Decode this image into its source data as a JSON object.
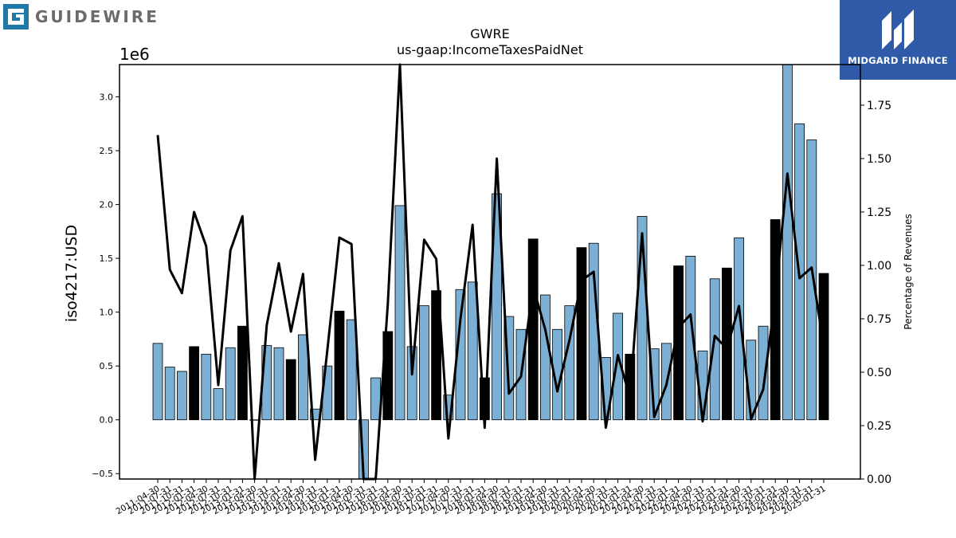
{
  "logos": {
    "left_text": "GUIDEWIRE",
    "right_text": "MIDGARD FINANCE",
    "left_icon": "guidewire-g-icon",
    "right_icon": "midgard-m-icon",
    "left_color": "#1f7aa8",
    "right_bg": "#2e5aa7"
  },
  "chart_data": {
    "type": "bar",
    "title": "GWRE",
    "subtitle": "us-gaap:IncomeTaxesPaidNet",
    "ylabel": "iso4217:USD",
    "y_multiplier_label": "1e6",
    "y2label": "Percentage of Revenues",
    "ylim": [
      -0.55,
      3.3
    ],
    "y2lim": [
      0.0,
      1.94
    ],
    "yticks": [
      -0.5,
      0.0,
      0.5,
      1.0,
      1.5,
      2.0,
      2.5,
      3.0
    ],
    "ytick_labels": [
      "−0.5",
      "0.0",
      "0.5",
      "1.0",
      "1.5",
      "2.0",
      "2.5",
      "3.0"
    ],
    "y2ticks": [
      0.0,
      0.25,
      0.5,
      0.75,
      1.0,
      1.25,
      1.5,
      1.75
    ],
    "y2tick_labels": [
      "0.00",
      "0.25",
      "0.50",
      "0.75",
      "1.00",
      "1.25",
      "1.50",
      "1.75"
    ],
    "grid": false,
    "legend": "none",
    "colors": {
      "bar": "#7bafd4",
      "bar_highlight": "#000000",
      "line": "#000000"
    },
    "categories": [
      "2011-04-30",
      "2011-07-31",
      "2011-10-31",
      "2012-01-31",
      "2012-04-30",
      "2012-07-31",
      "2012-10-31",
      "2013-01-31",
      "2013-04-30",
      "2013-07-31",
      "2013-10-31",
      "2014-01-31",
      "2014-04-30",
      "2014-07-31",
      "2014-10-31",
      "2015-01-31",
      "2015-04-30",
      "2015-07-31",
      "2015-10-31",
      "2016-01-31",
      "2016-04-30",
      "2016-07-31",
      "2016-10-31",
      "2017-01-31",
      "2017-04-30",
      "2017-07-31",
      "2017-10-31",
      "2018-01-31",
      "2018-04-30",
      "2018-07-31",
      "2018-10-31",
      "2019-01-31",
      "2019-04-30",
      "2019-07-31",
      "2019-10-31",
      "2020-01-31",
      "2020-04-30",
      "2020-07-31",
      "2020-10-31",
      "2021-01-31",
      "2021-04-30",
      "2021-07-31",
      "2021-10-31",
      "2022-01-31",
      "2022-04-30",
      "2022-07-31",
      "2022-10-31",
      "2023-01-31",
      "2023-04-30",
      "2023-07-31",
      "2023-10-31",
      "2024-01-31",
      "2024-04-30",
      "2024-07-31",
      "2024-10-31",
      "2025-01-31"
    ],
    "values": [
      0.71,
      0.49,
      0.45,
      0.68,
      0.61,
      0.29,
      0.67,
      0.87,
      0.0,
      0.69,
      0.67,
      0.56,
      0.79,
      0.1,
      0.5,
      1.01,
      0.93,
      -0.55,
      0.39,
      0.82,
      1.99,
      0.68,
      1.06,
      1.2,
      0.23,
      1.21,
      1.28,
      0.39,
      2.1,
      0.96,
      0.84,
      1.68,
      1.16,
      0.84,
      1.06,
      1.6,
      1.64,
      0.58,
      0.99,
      0.61,
      1.89,
      0.66,
      0.71,
      1.43,
      1.52,
      0.64,
      1.31,
      1.41,
      1.69,
      0.74,
      0.87,
      1.86,
      3.3,
      2.75,
      2.6,
      1.36
    ],
    "highlight": [
      false,
      false,
      false,
      true,
      false,
      false,
      false,
      true,
      false,
      false,
      false,
      true,
      false,
      false,
      false,
      true,
      false,
      false,
      false,
      true,
      false,
      false,
      false,
      true,
      false,
      false,
      false,
      true,
      false,
      false,
      false,
      true,
      false,
      false,
      false,
      true,
      false,
      false,
      false,
      true,
      false,
      false,
      false,
      true,
      false,
      false,
      false,
      true,
      false,
      false,
      false,
      true,
      false,
      false,
      false,
      true
    ],
    "pct_revenues": [
      1.61,
      0.98,
      0.87,
      1.25,
      1.09,
      0.44,
      1.07,
      1.23,
      0.0,
      0.72,
      1.01,
      0.69,
      0.96,
      0.09,
      0.6,
      1.13,
      1.1,
      0.0,
      0.0,
      0.82,
      1.96,
      0.49,
      1.12,
      1.03,
      0.19,
      0.75,
      1.19,
      0.24,
      1.5,
      0.4,
      0.48,
      0.9,
      0.7,
      0.41,
      0.65,
      0.93,
      0.97,
      0.24,
      0.58,
      0.38,
      1.15,
      0.29,
      0.44,
      0.71,
      0.77,
      0.27,
      0.67,
      0.61,
      0.81,
      0.28,
      0.42,
      0.85,
      1.43,
      0.94,
      0.99,
      0.62
    ]
  }
}
